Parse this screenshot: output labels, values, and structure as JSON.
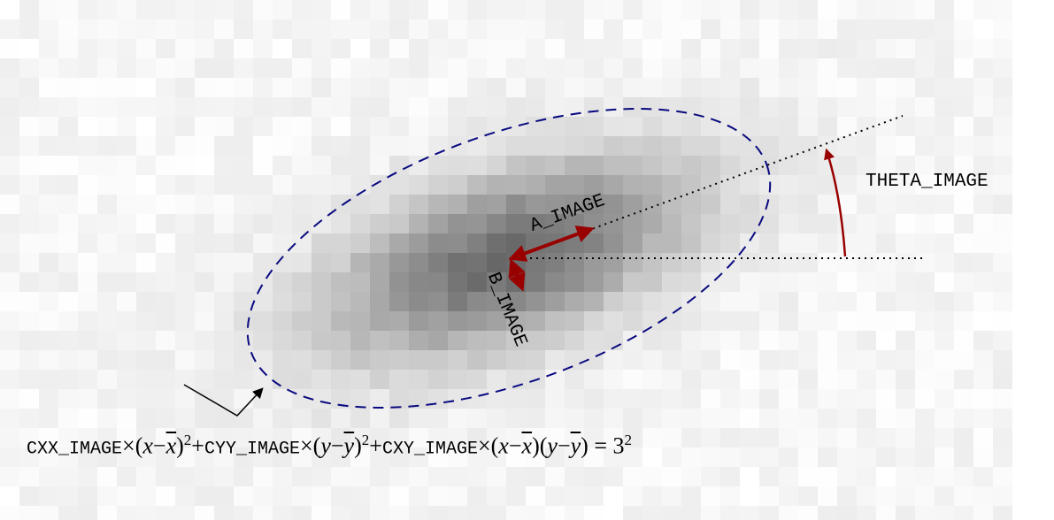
{
  "labels": {
    "theta": "THETA_IMAGE",
    "a": "A_IMAGE",
    "b": "B_IMAGE"
  },
  "formula": {
    "parts": [
      "CXX_IMAGE",
      "×(",
      "x",
      "−",
      "x",
      ")",
      "2",
      "+",
      "CYY_IMAGE",
      "×(",
      "y",
      "−",
      "y",
      ")",
      "2",
      "+",
      "CXY_IMAGE",
      "×(",
      "x",
      "−",
      "x",
      ")(",
      "y",
      "−",
      "y",
      ") = 3",
      "2"
    ]
  }
}
